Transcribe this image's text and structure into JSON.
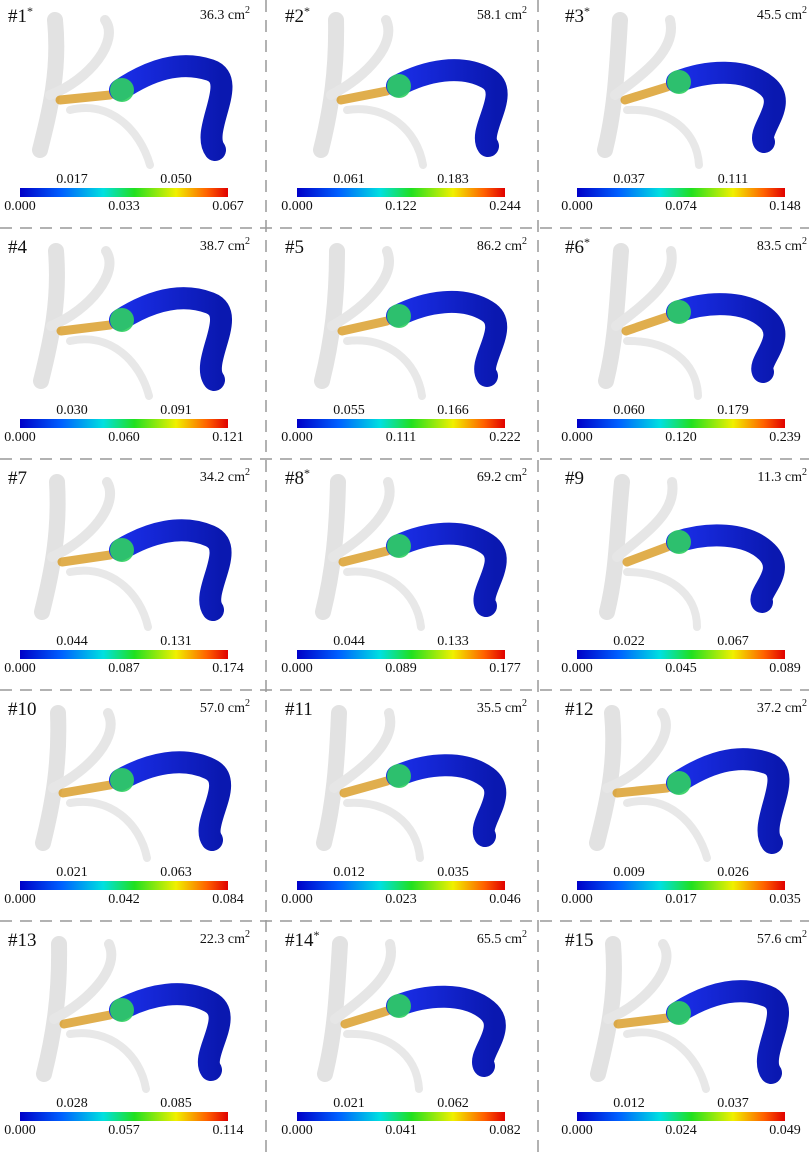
{
  "panels": [
    {
      "label": "#1",
      "label_sup": "*",
      "area": "36.3 cm",
      "area_sup": "2",
      "ticks_top": [
        "0.017",
        "0.050"
      ],
      "ticks_bottom": [
        "0.000",
        "0.033",
        "0.067"
      ]
    },
    {
      "label": "#2",
      "label_sup": "*",
      "area": "58.1 cm",
      "area_sup": "2",
      "ticks_top": [
        "0.061",
        "0.183"
      ],
      "ticks_bottom": [
        "0.000",
        "0.122",
        "0.244"
      ]
    },
    {
      "label": "#3",
      "label_sup": "*",
      "area": "45.5 cm",
      "area_sup": "2",
      "ticks_top": [
        "0.037",
        "0.111"
      ],
      "ticks_bottom": [
        "0.000",
        "0.074",
        "0.148"
      ]
    },
    {
      "label": "#4",
      "area": "38.7 cm",
      "area_sup": "2",
      "ticks_top": [
        "0.030",
        "0.091"
      ],
      "ticks_bottom": [
        "0.000",
        "0.060",
        "0.121"
      ]
    },
    {
      "label": "#5",
      "area": "86.2 cm",
      "area_sup": "2",
      "ticks_top": [
        "0.055",
        "0.166"
      ],
      "ticks_bottom": [
        "0.000",
        "0.111",
        "0.222"
      ]
    },
    {
      "label": "#6",
      "label_sup": "*",
      "area": "83.5 cm",
      "area_sup": "2",
      "ticks_top": [
        "0.060",
        "0.179"
      ],
      "ticks_bottom": [
        "0.000",
        "0.120",
        "0.239"
      ]
    },
    {
      "label": "#7",
      "area": "34.2 cm",
      "area_sup": "2",
      "ticks_top": [
        "0.044",
        "0.131"
      ],
      "ticks_bottom": [
        "0.000",
        "0.087",
        "0.174"
      ]
    },
    {
      "label": "#8",
      "label_sup": "*",
      "area": "69.2 cm",
      "area_sup": "2",
      "ticks_top": [
        "0.044",
        "0.133"
      ],
      "ticks_bottom": [
        "0.000",
        "0.089",
        "0.177"
      ]
    },
    {
      "label": "#9",
      "area": "11.3 cm",
      "area_sup": "2",
      "ticks_top": [
        "0.022",
        "0.067"
      ],
      "ticks_bottom": [
        "0.000",
        "0.045",
        "0.089"
      ]
    },
    {
      "label": "#10",
      "area": "57.0 cm",
      "area_sup": "2",
      "ticks_top": [
        "0.021",
        "0.063"
      ],
      "ticks_bottom": [
        "0.000",
        "0.042",
        "0.084"
      ]
    },
    {
      "label": "#11",
      "area": "35.5 cm",
      "area_sup": "2",
      "ticks_top": [
        "0.012",
        "0.035"
      ],
      "ticks_bottom": [
        "0.000",
        "0.023",
        "0.046"
      ]
    },
    {
      "label": "#12",
      "area": "37.2 cm",
      "area_sup": "2",
      "ticks_top": [
        "0.009",
        "0.026"
      ],
      "ticks_bottom": [
        "0.000",
        "0.017",
        "0.035"
      ]
    },
    {
      "label": "#13",
      "area": "22.3 cm",
      "area_sup": "2",
      "ticks_top": [
        "0.028",
        "0.085"
      ],
      "ticks_bottom": [
        "0.000",
        "0.057",
        "0.114"
      ]
    },
    {
      "label": "#14",
      "label_sup": "*",
      "area": "65.5 cm",
      "area_sup": "2",
      "ticks_top": [
        "0.021",
        "0.062"
      ],
      "ticks_bottom": [
        "0.000",
        "0.041",
        "0.082"
      ]
    },
    {
      "label": "#15",
      "area": "57.6 cm",
      "area_sup": "2",
      "ticks_top": [
        "0.012",
        "0.037"
      ],
      "ticks_bottom": [
        "0.000",
        "0.024",
        "0.049"
      ]
    }
  ]
}
